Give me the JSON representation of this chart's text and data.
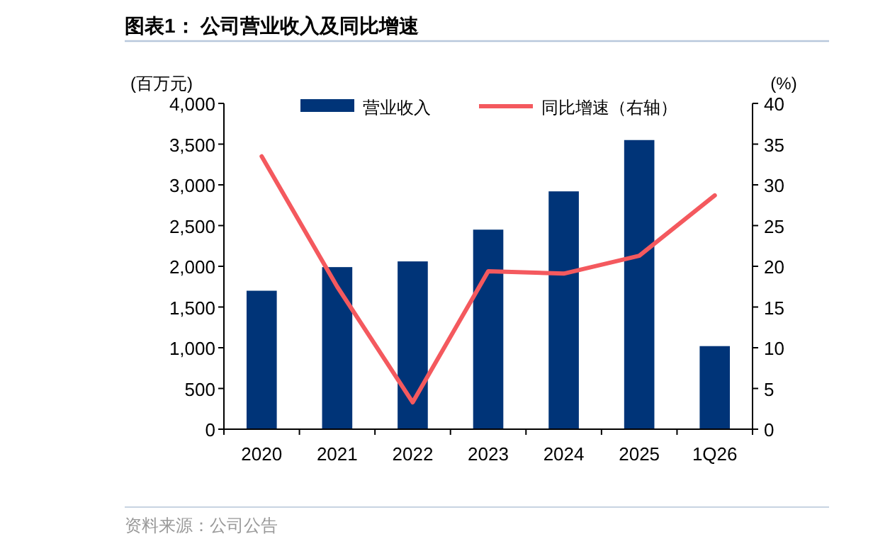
{
  "chart_data": {
    "type": "bar",
    "title": "图表1：  公司营业收入及同比增速",
    "ylabel": "(百万元)",
    "y2label": "(%)",
    "categories": [
      "2020",
      "2021",
      "2022",
      "2023",
      "2024",
      "2025",
      "1Q26"
    ],
    "series": [
      {
        "name": "营业收入",
        "color": "#003478",
        "values": [
          1700,
          1990,
          2060,
          2450,
          2920,
          3550,
          1020
        ]
      },
      {
        "name": "同比增速（右轴）",
        "type": "line",
        "axis": "y2",
        "color": "#f4595e",
        "marker": "none",
        "values": [
          33.5,
          17.5,
          3.3,
          19.4,
          19.1,
          21.3,
          28.7
        ]
      }
    ],
    "ylim": [
      0,
      4000
    ],
    "yticks": [
      0,
      500,
      {
        "value": 1000,
        "label": "1,000"
      },
      {
        "value": 1500,
        "label": "1,500"
      },
      {
        "value": 2000,
        "label": "2,000"
      },
      {
        "value": 2500,
        "label": "2,500"
      },
      {
        "value": 3000,
        "label": "3,000"
      },
      {
        "value": 3500,
        "label": "3,500"
      },
      {
        "value": 4000,
        "label": "4,000"
      }
    ],
    "y2lim": [
      0,
      40
    ],
    "y2ticks": [
      0,
      5,
      10,
      15,
      20,
      25,
      30,
      35,
      40
    ],
    "legend": "top",
    "grid": false,
    "annotations": [
      "资料来源：公司公告"
    ]
  }
}
